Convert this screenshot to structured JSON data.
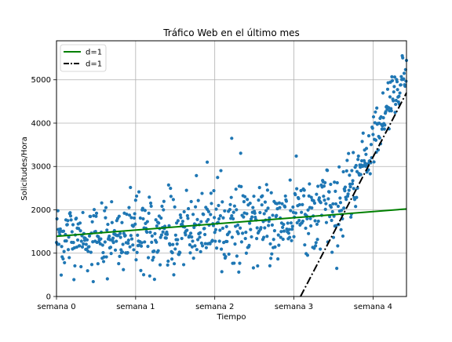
{
  "chart_data": {
    "type": "scatter",
    "title": "Tráfico Web en el último mes",
    "xlabel": "Tiempo",
    "ylabel": "Solicitudes/Hora",
    "xlim": [
      0,
      743
    ],
    "ylim": [
      0,
      5900
    ],
    "x_ticks": [
      {
        "value": 0,
        "label": "semana 0"
      },
      {
        "value": 168,
        "label": "semana 1"
      },
      {
        "value": 336,
        "label": "semana 2"
      },
      {
        "value": 504,
        "label": "semana 3"
      },
      {
        "value": 672,
        "label": "semana 4"
      }
    ],
    "y_ticks": [
      0,
      1000,
      2000,
      3000,
      4000,
      5000
    ],
    "grid": true,
    "legend_position": "top-left",
    "scatter_color": "#1f77b4",
    "trend_segments": [
      {
        "x_start": 0,
        "x_end": 160,
        "y_start": 1380,
        "y_end": 1380
      },
      {
        "x_start": 160,
        "x_end": 480,
        "y_start": 1380,
        "y_end": 1780
      },
      {
        "x_start": 480,
        "x_end": 620,
        "y_start": 1780,
        "y_end": 2150
      },
      {
        "x_start": 620,
        "x_end": 743,
        "y_start": 2300,
        "y_end": 5300
      }
    ],
    "noise_sd": 430,
    "outliers": [
      {
        "x": 320,
        "y": 3100
      },
      {
        "x": 372,
        "y": 3650
      }
    ],
    "series": [
      {
        "name": "d=1",
        "style": "solid",
        "color": "#008000",
        "x": [
          0,
          743
        ],
        "y": [
          1390,
          2020
        ]
      },
      {
        "name": "d=1",
        "style": "dashdot",
        "color": "#000000",
        "x": [
          518,
          743
        ],
        "y": [
          0,
          4700
        ]
      }
    ]
  }
}
